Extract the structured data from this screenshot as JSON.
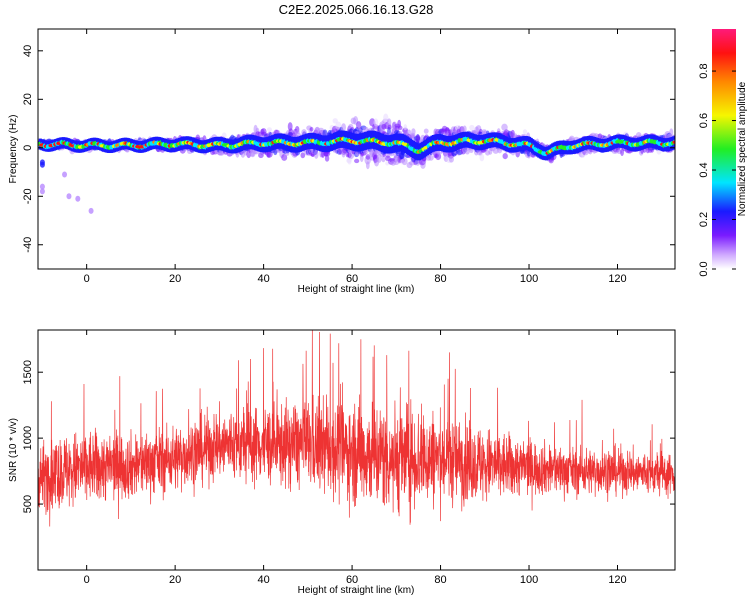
{
  "title": "C2E2.2025.066.16.13.G28",
  "chart_data": [
    {
      "type": "heatmap",
      "xlabel": "Height of straight line (km)",
      "ylabel": "Frequency (Hz)",
      "xlim": [
        -11,
        133
      ],
      "ylim": [
        -50,
        49
      ],
      "xticks": [
        0,
        20,
        40,
        60,
        80,
        100,
        120
      ],
      "yticks": [
        -40,
        -20,
        0,
        20,
        40
      ],
      "colorbar": {
        "label": "Normalized spectral amplitude",
        "range": [
          0,
          0.97
        ],
        "ticks": [
          "0.0",
          "0.2",
          "0.4",
          "0.6",
          "0.8"
        ],
        "colormap": "rainbow (white-violet-blue-cyan-green-yellow-orange-red-magenta)"
      },
      "ridge": {
        "description": "dominant frequency ridge near 0-3 Hz",
        "x": [
          -10,
          0,
          10,
          20,
          30,
          40,
          50,
          60,
          70,
          75,
          80,
          90,
          100,
          104,
          110,
          120,
          133
        ],
        "freq": [
          1.5,
          1,
          1,
          1.5,
          1,
          2,
          2,
          3,
          2,
          -1,
          2,
          3,
          1,
          -2,
          1,
          2,
          2
        ],
        "spread": [
          1.5,
          2,
          2,
          3,
          4,
          6,
          7,
          9,
          10,
          8,
          8,
          6,
          5,
          4,
          4,
          4,
          4
        ]
      }
    },
    {
      "type": "line",
      "xlabel": "Height of straight line (km)",
      "ylabel": "SNR (10 * v/v)",
      "xlim": [
        -11,
        133
      ],
      "ylim": [
        0,
        1820
      ],
      "xticks": [
        0,
        20,
        40,
        60,
        80,
        100,
        120
      ],
      "yticks": [
        500,
        1000,
        1500
      ],
      "series": [
        {
          "color": "#ee3333",
          "envelope_x": [
            -11,
            -5,
            0,
            10,
            20,
            30,
            40,
            50,
            60,
            70,
            80,
            90,
            100,
            110,
            120,
            133
          ],
          "mean": [
            700,
            750,
            780,
            790,
            850,
            950,
            950,
            950,
            900,
            850,
            850,
            800,
            780,
            750,
            750,
            720
          ],
          "amplitude": [
            350,
            400,
            400,
            350,
            350,
            380,
            420,
            480,
            550,
            600,
            500,
            400,
            300,
            250,
            250,
            220
          ],
          "peaks": [
            [
              -8,
              1280
            ],
            [
              7.5,
              1470
            ],
            [
              37,
              1600
            ],
            [
              51,
              1820
            ],
            [
              57,
              1720
            ],
            [
              62,
              1750
            ],
            [
              82,
              1650
            ],
            [
              112,
              1290
            ]
          ]
        }
      ]
    }
  ]
}
